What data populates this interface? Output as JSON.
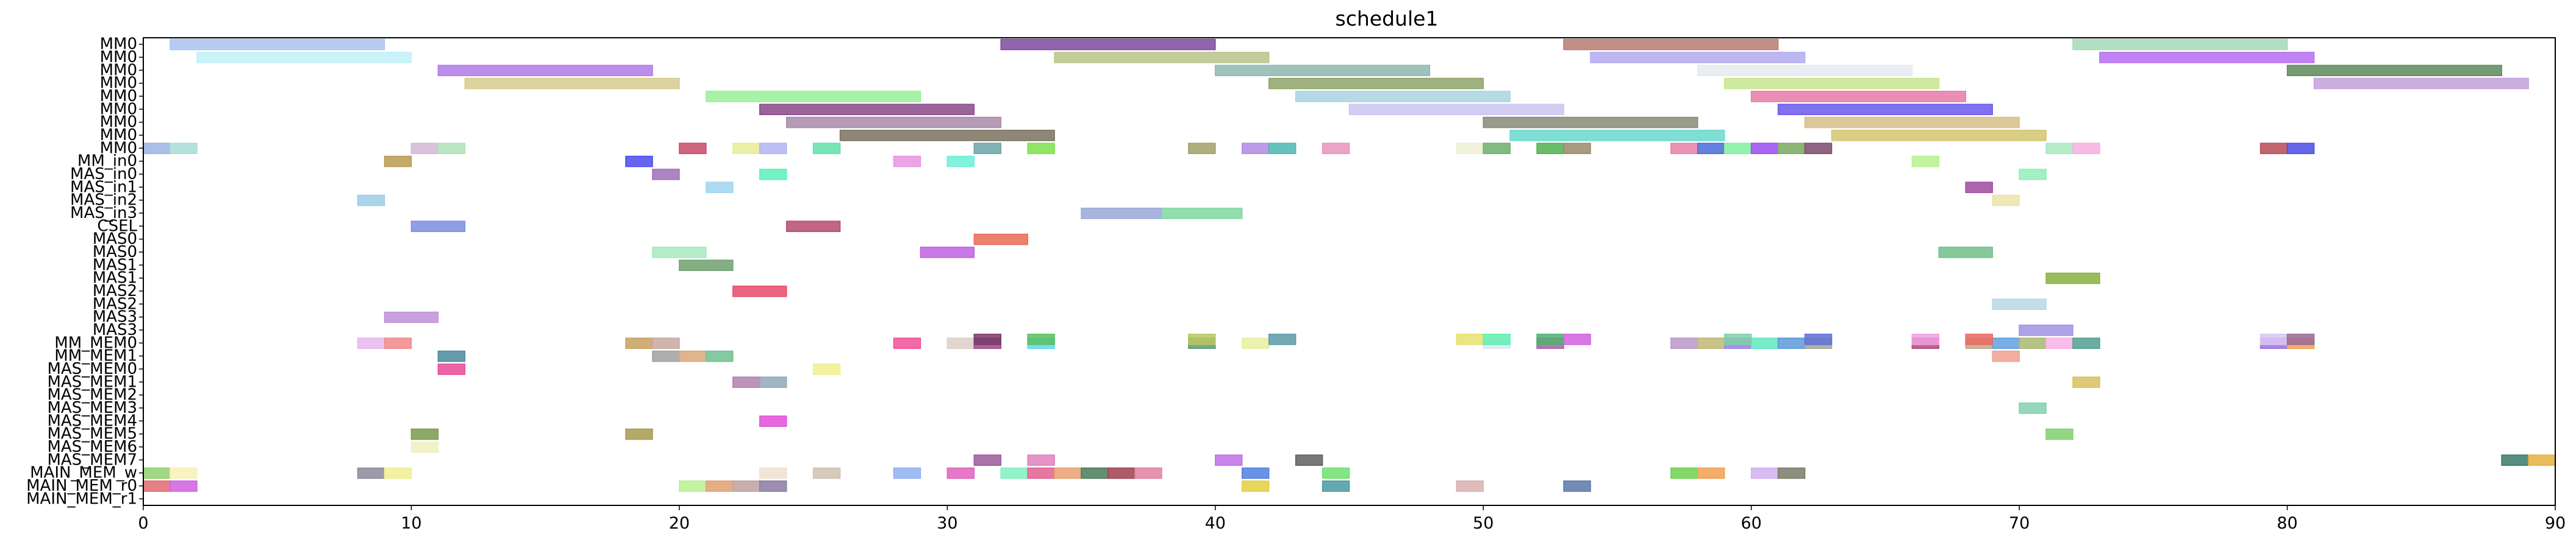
{
  "chart_data": {
    "type": "gantt",
    "title": "schedule1",
    "xlabel": "",
    "ylabel": "",
    "xlim": [
      0,
      90
    ],
    "x_ticks": [
      0,
      10,
      20,
      30,
      40,
      50,
      60,
      70,
      80,
      90
    ],
    "grid": false,
    "rows": [
      "MM0",
      "MM0",
      "MM0",
      "MM0",
      "MM0",
      "MM0",
      "MM0",
      "MM0",
      "MM0",
      "MM_in0",
      "MAS_in0",
      "MAS_in1",
      "MAS_in2",
      "MAS_in3",
      "CSEL",
      "MAS0",
      "MAS0",
      "MAS1",
      "MAS1",
      "MAS2",
      "MAS2",
      "MAS3",
      "MAS3",
      "MM_MEM0",
      "MM_MEM1",
      "MAS_MEM0",
      "MAS_MEM1",
      "MAS_MEM2",
      "MAS_MEM3",
      "MAS_MEM4",
      "MAS_MEM5",
      "MAS_MEM6",
      "MAS_MEM7",
      "MAIN_MEM_w",
      "MAIN_MEM_r0",
      "MAIN_MEM_r1"
    ],
    "tasks": [
      {
        "row": 0,
        "start": 1,
        "end": 9,
        "color": "#a9c4ee"
      },
      {
        "row": 0,
        "start": 32,
        "end": 40,
        "color": "#7d4a9e"
      },
      {
        "row": 0,
        "start": 53,
        "end": 61,
        "color": "#b97d72"
      },
      {
        "row": 0,
        "start": 72,
        "end": 80,
        "color": "#a6d8b8"
      },
      {
        "row": 1,
        "start": 2,
        "end": 10,
        "color": "#c2f0f7"
      },
      {
        "row": 1,
        "start": 34,
        "end": 42,
        "color": "#b8c48a"
      },
      {
        "row": 1,
        "start": 54,
        "end": 62,
        "color": "#b2aaf0"
      },
      {
        "row": 1,
        "start": 73,
        "end": 81,
        "color": "#b56ef0"
      },
      {
        "row": 2,
        "start": 11,
        "end": 19,
        "color": "#b07ae8"
      },
      {
        "row": 2,
        "start": 40,
        "end": 48,
        "color": "#8db8b2"
      },
      {
        "row": 2,
        "start": 58,
        "end": 66,
        "color": "#e6eaee"
      },
      {
        "row": 2,
        "start": 80,
        "end": 88,
        "color": "#5d8a5d"
      },
      {
        "row": 3,
        "start": 12,
        "end": 20,
        "color": "#d6cc8e"
      },
      {
        "row": 3,
        "start": 42,
        "end": 50,
        "color": "#8fa468"
      },
      {
        "row": 3,
        "start": 59,
        "end": 67,
        "color": "#c8e690"
      },
      {
        "row": 3,
        "start": 81,
        "end": 89,
        "color": "#c4a0dc"
      },
      {
        "row": 4,
        "start": 21,
        "end": 29,
        "color": "#98f098"
      },
      {
        "row": 4,
        "start": 43,
        "end": 51,
        "color": "#a8d4de"
      },
      {
        "row": 4,
        "start": 60,
        "end": 68,
        "color": "#e87aa8"
      },
      {
        "row": 5,
        "start": 23,
        "end": 31,
        "color": "#8a4a8a"
      },
      {
        "row": 5,
        "start": 45,
        "end": 53,
        "color": "#ccc4f0"
      },
      {
        "row": 5,
        "start": 61,
        "end": 69,
        "color": "#6a58ec"
      },
      {
        "row": 6,
        "start": 24,
        "end": 32,
        "color": "#a88aa8"
      },
      {
        "row": 6,
        "start": 50,
        "end": 58,
        "color": "#8a8a78"
      },
      {
        "row": 6,
        "start": 62,
        "end": 70,
        "color": "#d6c088"
      },
      {
        "row": 7,
        "start": 26,
        "end": 34,
        "color": "#7a7260"
      },
      {
        "row": 7,
        "start": 51,
        "end": 59,
        "color": "#6ad8cc"
      },
      {
        "row": 7,
        "start": 63,
        "end": 71,
        "color": "#d4c470"
      },
      {
        "row": 8,
        "start": 0,
        "end": 1,
        "color": "#9ab4e0"
      },
      {
        "row": 8,
        "start": 1,
        "end": 2,
        "color": "#a8dcd6"
      },
      {
        "row": 8,
        "start": 10,
        "end": 11,
        "color": "#d4b8d4"
      },
      {
        "row": 8,
        "start": 11,
        "end": 12,
        "color": "#b0e0b8"
      },
      {
        "row": 8,
        "start": 20,
        "end": 21,
        "color": "#c84a6a"
      },
      {
        "row": 8,
        "start": 22,
        "end": 23,
        "color": "#e8ec98"
      },
      {
        "row": 8,
        "start": 23,
        "end": 24,
        "color": "#b0b4f0"
      },
      {
        "row": 8,
        "start": 25,
        "end": 26,
        "color": "#60e0a8"
      },
      {
        "row": 8,
        "start": 31,
        "end": 32,
        "color": "#6aa4a8"
      },
      {
        "row": 8,
        "start": 33,
        "end": 34,
        "color": "#7ee04a"
      },
      {
        "row": 8,
        "start": 39,
        "end": 40,
        "color": "#a0a068"
      },
      {
        "row": 8,
        "start": 41,
        "end": 42,
        "color": "#b08ae4"
      },
      {
        "row": 8,
        "start": 42,
        "end": 43,
        "color": "#4ab8b0"
      },
      {
        "row": 8,
        "start": 44,
        "end": 45,
        "color": "#e894b8"
      },
      {
        "row": 8,
        "start": 49,
        "end": 50,
        "color": "#eef0d4"
      },
      {
        "row": 8,
        "start": 50,
        "end": 51,
        "color": "#6ab06a"
      },
      {
        "row": 8,
        "start": 52,
        "end": 53,
        "color": "#50b050"
      },
      {
        "row": 8,
        "start": 53,
        "end": 54,
        "color": "#9a8a6a"
      },
      {
        "row": 8,
        "start": 57,
        "end": 58,
        "color": "#e880a8"
      },
      {
        "row": 8,
        "start": 58,
        "end": 59,
        "color": "#4a6ad8"
      },
      {
        "row": 8,
        "start": 59,
        "end": 60,
        "color": "#80f0a0"
      },
      {
        "row": 8,
        "start": 60,
        "end": 61,
        "color": "#9a4af0"
      },
      {
        "row": 8,
        "start": 61,
        "end": 62,
        "color": "#7aa860"
      },
      {
        "row": 8,
        "start": 62,
        "end": 63,
        "color": "#7a4a6a"
      },
      {
        "row": 8,
        "start": 71,
        "end": 72,
        "color": "#a8e8c0"
      },
      {
        "row": 8,
        "start": 72,
        "end": 73,
        "color": "#f4b0e0"
      },
      {
        "row": 8,
        "start": 79,
        "end": 80,
        "color": "#b84a58"
      },
      {
        "row": 8,
        "start": 80,
        "end": 81,
        "color": "#4a4ae8"
      },
      {
        "row": 9,
        "start": 9,
        "end": 10,
        "color": "#b89a50"
      },
      {
        "row": 9,
        "start": 18,
        "end": 19,
        "color": "#4a4af0"
      },
      {
        "row": 9,
        "start": 28,
        "end": 29,
        "color": "#e894e0"
      },
      {
        "row": 9,
        "start": 30,
        "end": 31,
        "color": "#6af0d8"
      },
      {
        "row": 9,
        "start": 66,
        "end": 67,
        "color": "#b8f090"
      },
      {
        "row": 10,
        "start": 19,
        "end": 20,
        "color": "#a070b8"
      },
      {
        "row": 10,
        "start": 23,
        "end": 24,
        "color": "#5af0b8"
      },
      {
        "row": 10,
        "start": 70,
        "end": 71,
        "color": "#90eeb8"
      },
      {
        "row": 11,
        "start": 21,
        "end": 22,
        "color": "#a0d4f0"
      },
      {
        "row": 11,
        "start": 68,
        "end": 69,
        "color": "#a04aa0"
      },
      {
        "row": 12,
        "start": 8,
        "end": 9,
        "color": "#9ccce8"
      },
      {
        "row": 12,
        "start": 69,
        "end": 70,
        "color": "#eae4a8"
      },
      {
        "row": 13,
        "start": 35,
        "end": 38,
        "color": "#98a8d8"
      },
      {
        "row": 13,
        "start": 38,
        "end": 41,
        "color": "#80d8a0"
      },
      {
        "row": 14,
        "start": 10,
        "end": 12,
        "color": "#7a8ee0"
      },
      {
        "row": 14,
        "start": 24,
        "end": 26,
        "color": "#b84a70"
      },
      {
        "row": 15,
        "start": 31,
        "end": 33,
        "color": "#e86a58"
      },
      {
        "row": 16,
        "start": 19,
        "end": 21,
        "color": "#a8e8c0"
      },
      {
        "row": 16,
        "start": 29,
        "end": 31,
        "color": "#c060e0"
      },
      {
        "row": 16,
        "start": 67,
        "end": 69,
        "color": "#70c08a"
      },
      {
        "row": 17,
        "start": 20,
        "end": 22,
        "color": "#70a070"
      },
      {
        "row": 18,
        "start": 71,
        "end": 73,
        "color": "#88b040"
      },
      {
        "row": 19,
        "start": 22,
        "end": 24,
        "color": "#e84a6a"
      },
      {
        "row": 20,
        "start": 69,
        "end": 71,
        "color": "#b8d8e8"
      },
      {
        "row": 21,
        "start": 9,
        "end": 11,
        "color": "#c090d8"
      },
      {
        "row": 22,
        "start": 70,
        "end": 72,
        "color": "#a090e0"
      },
      {
        "row": 23,
        "start": 8,
        "end": 9,
        "color": "#e8b8f0"
      },
      {
        "row": 23,
        "start": 9,
        "end": 10,
        "color": "#f08888"
      },
      {
        "row": 23,
        "start": 18,
        "end": 19,
        "color": "#c8a060"
      },
      {
        "row": 23,
        "start": 19,
        "end": 20,
        "color": "#c8a8a0"
      },
      {
        "row": 23,
        "start": 28,
        "end": 29,
        "color": "#f05098"
      },
      {
        "row": 23,
        "start": 30,
        "end": 31,
        "color": "#ddd0c8"
      },
      {
        "row": 23,
        "start": 31,
        "end": 32,
        "color": "#9a4a8a"
      },
      {
        "row": 23,
        "start": 33,
        "end": 34,
        "color": "#60d8f0"
      },
      {
        "row": 23,
        "start": 39,
        "end": 40,
        "color": "#5a9a7a"
      },
      {
        "row": 23,
        "start": 41,
        "end": 42,
        "color": "#e8f0a0"
      },
      {
        "row": 23,
        "start": 50,
        "end": 51,
        "color": "#dce8f4"
      },
      {
        "row": 23,
        "start": 52,
        "end": 53,
        "color": "#a860a8"
      },
      {
        "row": 23,
        "start": 57,
        "end": 58,
        "color": "#b898c8"
      },
      {
        "row": 23,
        "start": 58,
        "end": 59,
        "color": "#c0b870"
      },
      {
        "row": 23,
        "start": 59,
        "end": 60,
        "color": "#9a80e8"
      },
      {
        "row": 23,
        "start": 60,
        "end": 61,
        "color": "#60e8c0"
      },
      {
        "row": 23,
        "start": 61,
        "end": 62,
        "color": "#5a9ad8"
      },
      {
        "row": 23,
        "start": 62,
        "end": 63,
        "color": "#a0a890"
      },
      {
        "row": 23,
        "start": 66,
        "end": 67,
        "color": "#b04a78"
      },
      {
        "row": 23,
        "start": 68,
        "end": 69,
        "color": "#c0a890"
      },
      {
        "row": 23,
        "start": 69,
        "end": 70,
        "color": "#60a0e0"
      },
      {
        "row": 23,
        "start": 70,
        "end": 71,
        "color": "#a8b870"
      },
      {
        "row": 23,
        "start": 71,
        "end": 72,
        "color": "#f8b0e8"
      },
      {
        "row": 23,
        "start": 72,
        "end": 73,
        "color": "#50a090"
      },
      {
        "row": 23,
        "start": 79,
        "end": 80,
        "color": "#9a70e8"
      },
      {
        "row": 23,
        "start": 80,
        "end": 81,
        "color": "#f0a050"
      },
      {
        "row": 22.7,
        "start": 31,
        "end": 32,
        "color": "#7a3a6a"
      },
      {
        "row": 22.7,
        "start": 33,
        "end": 34,
        "color": "#5ac060"
      },
      {
        "row": 22.7,
        "start": 39,
        "end": 40,
        "color": "#b8c860"
      },
      {
        "row": 22.7,
        "start": 42,
        "end": 43,
        "color": "#5a9aa8"
      },
      {
        "row": 22.7,
        "start": 49,
        "end": 50,
        "color": "#e8e070"
      },
      {
        "row": 22.7,
        "start": 50,
        "end": 51,
        "color": "#60f0b0"
      },
      {
        "row": 22.7,
        "start": 52,
        "end": 53,
        "color": "#50b070"
      },
      {
        "row": 22.7,
        "start": 53,
        "end": 54,
        "color": "#d060e0"
      },
      {
        "row": 22.7,
        "start": 59,
        "end": 60,
        "color": "#80d0a8"
      },
      {
        "row": 22.7,
        "start": 62,
        "end": 63,
        "color": "#6070d8"
      },
      {
        "row": 22.7,
        "start": 66,
        "end": 67,
        "color": "#f0a0e0"
      },
      {
        "row": 22.7,
        "start": 68,
        "end": 69,
        "color": "#e86a60"
      },
      {
        "row": 22.7,
        "start": 79,
        "end": 80,
        "color": "#d8c8f0"
      },
      {
        "row": 22.7,
        "start": 80,
        "end": 81,
        "color": "#9a6a98"
      },
      {
        "row": 24,
        "start": 11,
        "end": 12,
        "color": "#4a8aa0"
      },
      {
        "row": 24,
        "start": 19,
        "end": 20,
        "color": "#a0a0a0"
      },
      {
        "row": 24,
        "start": 20,
        "end": 21,
        "color": "#d8a878"
      },
      {
        "row": 24,
        "start": 21,
        "end": 22,
        "color": "#70c090"
      },
      {
        "row": 24,
        "start": 69,
        "end": 70,
        "color": "#f0a090"
      },
      {
        "row": 25,
        "start": 11,
        "end": 12,
        "color": "#e84a98"
      },
      {
        "row": 25,
        "start": 25,
        "end": 26,
        "color": "#f0f090"
      },
      {
        "row": 26,
        "start": 22,
        "end": 23,
        "color": "#b080b0"
      },
      {
        "row": 26,
        "start": 23,
        "end": 24,
        "color": "#90a8b8"
      },
      {
        "row": 26,
        "start": 72,
        "end": 73,
        "color": "#d8c060"
      },
      {
        "row": 28,
        "start": 70,
        "end": 71,
        "color": "#80d0b0"
      },
      {
        "row": 29,
        "start": 23,
        "end": 24,
        "color": "#e050d8"
      },
      {
        "row": 30,
        "start": 10,
        "end": 11,
        "color": "#7a9a4a"
      },
      {
        "row": 30,
        "start": 18,
        "end": 19,
        "color": "#a89a50"
      },
      {
        "row": 30,
        "start": 71,
        "end": 72,
        "color": "#80d070"
      },
      {
        "row": 31,
        "start": 10,
        "end": 11,
        "color": "#f0f0c0"
      },
      {
        "row": 32,
        "start": 31,
        "end": 32,
        "color": "#9a5a9a"
      },
      {
        "row": 32,
        "start": 33,
        "end": 34,
        "color": "#e080c0"
      },
      {
        "row": 32,
        "start": 40,
        "end": 41,
        "color": "#c070e8"
      },
      {
        "row": 32,
        "start": 43,
        "end": 44,
        "color": "#606060"
      },
      {
        "row": 32,
        "start": 88,
        "end": 89,
        "color": "#3a7a6a"
      },
      {
        "row": 32,
        "start": 89,
        "end": 90,
        "color": "#e8b040"
      },
      {
        "row": 33,
        "start": 0,
        "end": 1,
        "color": "#90d070"
      },
      {
        "row": 33,
        "start": 1,
        "end": 2,
        "color": "#f8f0b8"
      },
      {
        "row": 33,
        "start": 8,
        "end": 9,
        "color": "#8a8a9a"
      },
      {
        "row": 33,
        "start": 9,
        "end": 10,
        "color": "#f0f090"
      },
      {
        "row": 33,
        "start": 23,
        "end": 24,
        "color": "#f0e0d0"
      },
      {
        "row": 33,
        "start": 25,
        "end": 26,
        "color": "#d0c0b0"
      },
      {
        "row": 33,
        "start": 28,
        "end": 29,
        "color": "#90b0f0"
      },
      {
        "row": 33,
        "start": 30,
        "end": 31,
        "color": "#e060c0"
      },
      {
        "row": 33,
        "start": 32,
        "end": 33,
        "color": "#80f0c0"
      },
      {
        "row": 33,
        "start": 33,
        "end": 34,
        "color": "#e06090"
      },
      {
        "row": 33,
        "start": 34,
        "end": 35,
        "color": "#e8a070"
      },
      {
        "row": 33,
        "start": 35,
        "end": 36,
        "color": "#4a7a5a"
      },
      {
        "row": 33,
        "start": 36,
        "end": 37,
        "color": "#a04050"
      },
      {
        "row": 33,
        "start": 37,
        "end": 38,
        "color": "#e080a0"
      },
      {
        "row": 33,
        "start": 41,
        "end": 42,
        "color": "#5080e0"
      },
      {
        "row": 33,
        "start": 44,
        "end": 45,
        "color": "#70e070"
      },
      {
        "row": 33,
        "start": 57,
        "end": 58,
        "color": "#70d050"
      },
      {
        "row": 33,
        "start": 58,
        "end": 59,
        "color": "#f0a050"
      },
      {
        "row": 33,
        "start": 60,
        "end": 61,
        "color": "#d0b0f0"
      },
      {
        "row": 33,
        "start": 61,
        "end": 62,
        "color": "#7a7a6a"
      },
      {
        "row": 34,
        "start": 0,
        "end": 1,
        "color": "#e06a70"
      },
      {
        "row": 34,
        "start": 1,
        "end": 2,
        "color": "#d060e0"
      },
      {
        "row": 34,
        "start": 20,
        "end": 21,
        "color": "#b8f090"
      },
      {
        "row": 34,
        "start": 21,
        "end": 22,
        "color": "#e0a070"
      },
      {
        "row": 34,
        "start": 22,
        "end": 23,
        "color": "#c0a0a0"
      },
      {
        "row": 34,
        "start": 23,
        "end": 24,
        "color": "#8a7aa0"
      },
      {
        "row": 34,
        "start": 41,
        "end": 42,
        "color": "#e0d040"
      },
      {
        "row": 34,
        "start": 44,
        "end": 45,
        "color": "#4a9aa0"
      },
      {
        "row": 34,
        "start": 49,
        "end": 50,
        "color": "#d8b0b0"
      },
      {
        "row": 34,
        "start": 53,
        "end": 54,
        "color": "#5a78a8"
      }
    ]
  }
}
